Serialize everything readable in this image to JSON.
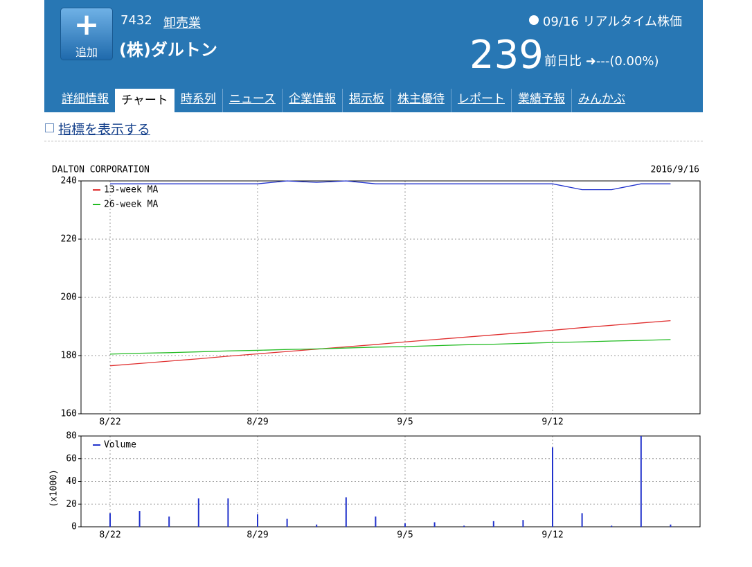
{
  "header": {
    "add_button": "追加",
    "code": "7432",
    "industry": "卸売業",
    "name": "(株)ダルトン",
    "date": "09/16",
    "realtime": "リアルタイム株価",
    "price": 239,
    "change_label": "前日比",
    "change": "---(0.00%)"
  },
  "tabs": [
    "詳細情報",
    "チャート",
    "時系列",
    "ニュース",
    "企業情報",
    "掲示板",
    "株主優待",
    "レポート",
    "業績予報",
    "みんかぶ"
  ],
  "active_tab": 1,
  "indicator_toggle": "指標を表示する",
  "chart_data": [
    {
      "type": "line",
      "title": "DALTON CORPORATION",
      "subtitle": "2016/9/16",
      "categories": [
        "8/22",
        null,
        null,
        null,
        null,
        "8/29",
        null,
        null,
        null,
        null,
        "9/5",
        null,
        null,
        null,
        null,
        "9/12",
        null,
        null,
        null,
        null
      ],
      "series": [
        {
          "color": "#2233cc",
          "values": [
            239,
            239,
            239,
            239,
            239,
            239,
            240,
            239.5,
            240,
            239,
            239,
            239,
            239,
            239,
            239,
            239,
            237,
            237,
            239,
            239
          ]
        },
        {
          "name": "13-week MA",
          "color": "#e03030",
          "values": [
            176.5,
            177.3,
            178.1,
            178.9,
            179.8,
            180.6,
            181.4,
            182.2,
            183.0,
            183.8,
            184.7,
            185.5,
            186.3,
            187.1,
            187.9,
            188.7,
            189.6,
            190.4,
            191.2,
            192.0
          ]
        },
        {
          "name": "26-week MA",
          "color": "#22bb22",
          "values": [
            180.5,
            180.8,
            181.0,
            181.3,
            181.6,
            181.8,
            182.1,
            182.3,
            182.6,
            182.9,
            183.1,
            183.4,
            183.7,
            183.9,
            184.2,
            184.5,
            184.7,
            185.0,
            185.2,
            185.5
          ]
        }
      ],
      "ylim": [
        160,
        240
      ],
      "yticks": [
        160,
        180,
        200,
        220,
        240
      ],
      "grid": true,
      "legend": "upper left"
    },
    {
      "type": "bar",
      "y_label": "(x1000)",
      "categories": [
        "8/22",
        null,
        null,
        null,
        null,
        "8/29",
        null,
        null,
        null,
        null,
        "9/5",
        null,
        null,
        null,
        null,
        "9/12",
        null,
        null,
        null,
        null
      ],
      "series": [
        {
          "name": "Volume",
          "color": "#2233cc",
          "values": [
            12,
            14,
            9,
            25,
            25,
            11,
            7,
            2,
            26,
            9,
            3,
            4,
            1,
            5,
            6,
            70,
            12,
            1,
            80,
            2
          ]
        }
      ],
      "ylim": [
        0,
        80
      ],
      "yticks": [
        0,
        20,
        40,
        60,
        80
      ],
      "grid": true,
      "legend": "upper left"
    }
  ]
}
